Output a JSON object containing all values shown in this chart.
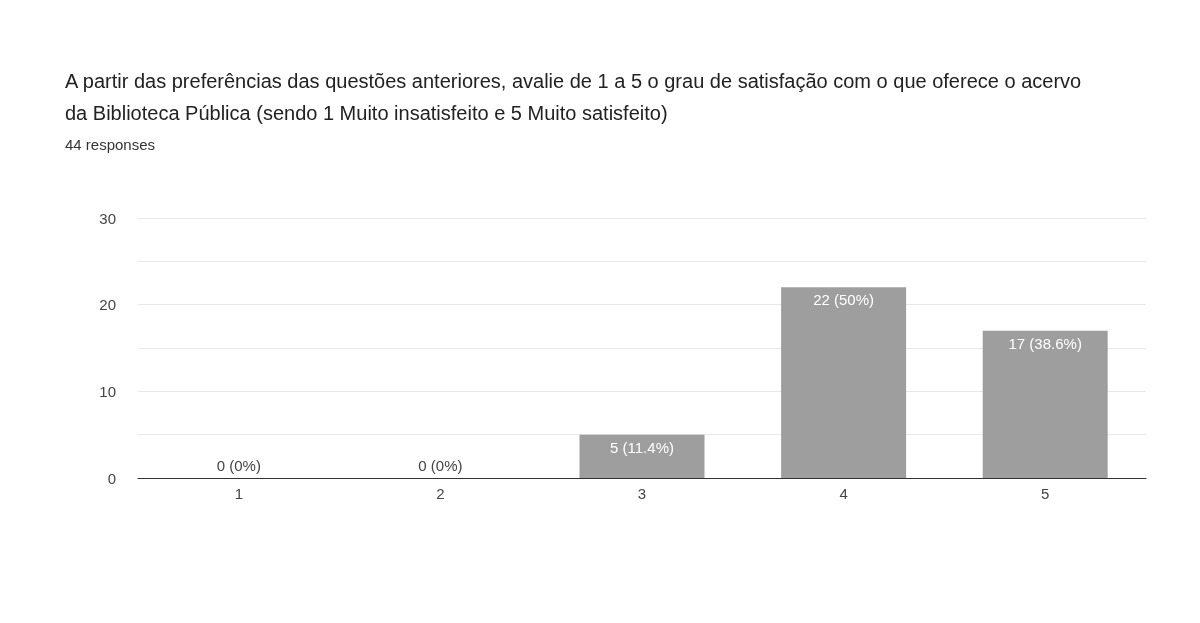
{
  "chart_data": {
    "type": "bar",
    "title": "A partir das preferências das questões anteriores, avalie de 1 a 5 o grau de satisfação com o que oferece o acervo da Biblioteca Pública (sendo 1 Muito insatisfeito e 5 Muito satisfeito)",
    "subtitle": "44 responses",
    "categories": [
      "1",
      "2",
      "3",
      "4",
      "5"
    ],
    "values": [
      0,
      0,
      5,
      22,
      17
    ],
    "value_labels": [
      "0 (0%)",
      "0 (0%)",
      "5 (11.4%)",
      "22 (50%)",
      "17 (38.6%)"
    ],
    "color": "#9e9e9e",
    "ylim": [
      0,
      30
    ],
    "yticks": [
      0,
      {
        "value": 5,
        "label": null
      },
      10,
      {
        "value": 15,
        "label": null
      },
      20,
      {
        "value": 25,
        "label": null
      },
      30
    ],
    "grid": "y"
  }
}
